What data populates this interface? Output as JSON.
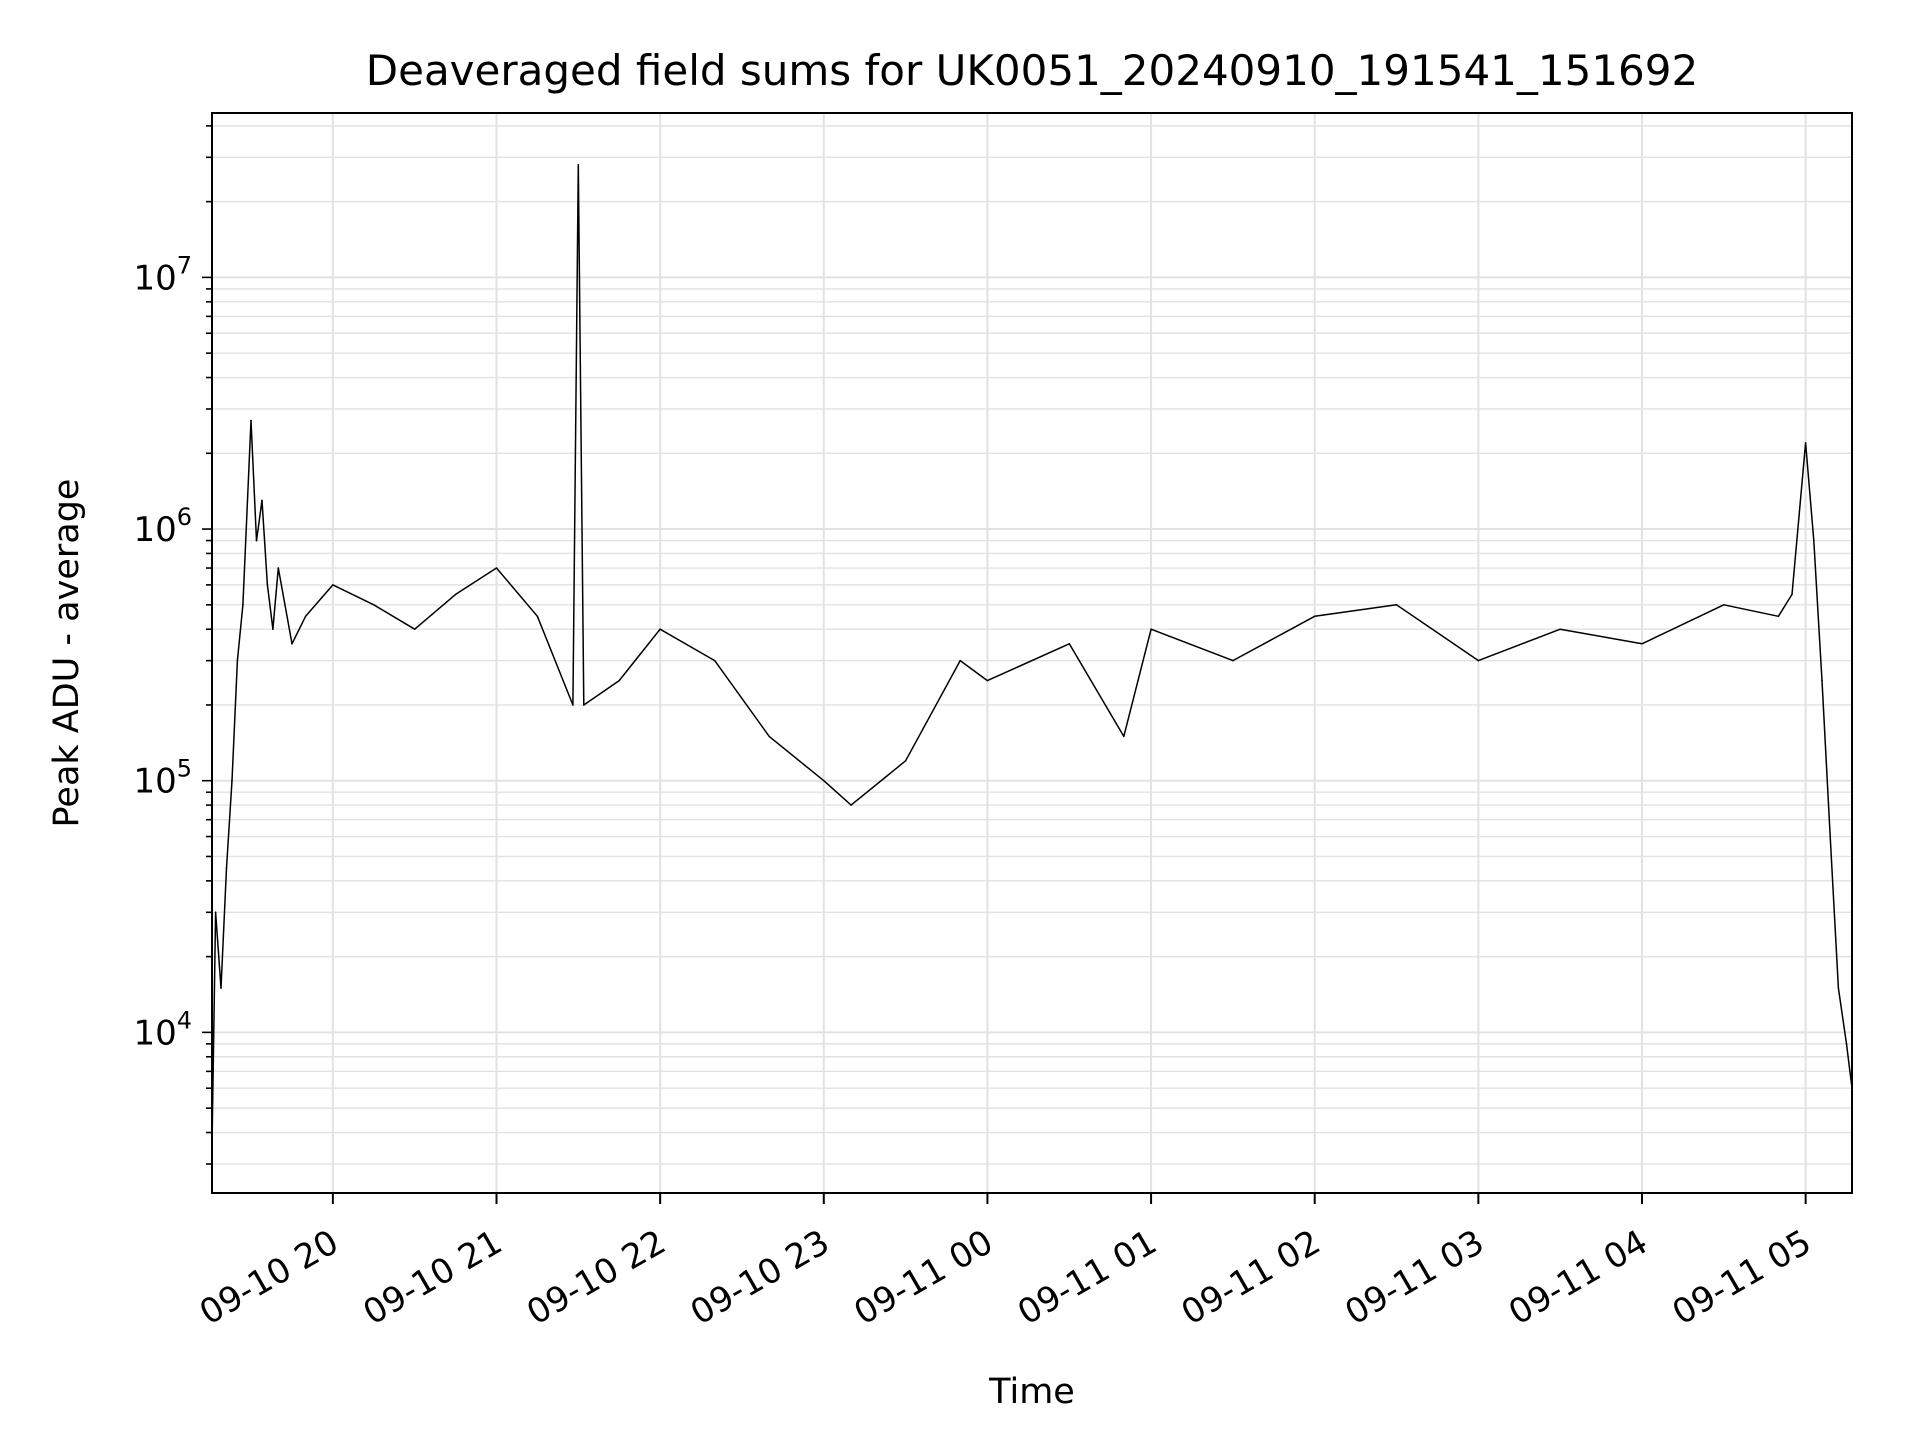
{
  "chart_data": {
    "type": "line",
    "title": "Deaveraged field sums for UK0051_20240910_191541_151692",
    "xlabel": "Time",
    "ylabel": "Peak ADU - average",
    "x_scale": "time",
    "y_scale": "log",
    "xlim": [
      "2024-09-10 19:15:41",
      "2024-09-11 05:17:00"
    ],
    "ylim": [
      2300,
      45000000
    ],
    "x_ticks": [
      "09-10 20",
      "09-10 21",
      "09-10 22",
      "09-10 23",
      "09-11 00",
      "09-11 01",
      "09-11 02",
      "09-11 03",
      "09-11 04",
      "09-11 05"
    ],
    "y_ticks": [
      {
        "value": 10000,
        "base": "10",
        "exp": "4"
      },
      {
        "value": 100000,
        "base": "10",
        "exp": "5"
      },
      {
        "value": 1000000,
        "base": "10",
        "exp": "6"
      },
      {
        "value": 10000000,
        "base": "10",
        "exp": "7"
      }
    ],
    "grid": true,
    "series_color": "#000000",
    "series": [
      {
        "x": [
          "2024-09-10 19:15:41",
          "2024-09-10 19:17",
          "2024-09-10 19:19",
          "2024-09-10 19:21",
          "2024-09-10 19:23",
          "2024-09-10 19:25",
          "2024-09-10 19:27",
          "2024-09-10 19:30",
          "2024-09-10 19:32",
          "2024-09-10 19:34",
          "2024-09-10 19:36",
          "2024-09-10 19:38",
          "2024-09-10 19:40",
          "2024-09-10 19:45",
          "2024-09-10 19:50",
          "2024-09-10 20:00",
          "2024-09-10 20:15",
          "2024-09-10 20:30",
          "2024-09-10 20:45",
          "2024-09-10 21:00",
          "2024-09-10 21:15",
          "2024-09-10 21:28",
          "2024-09-10 21:30",
          "2024-09-10 21:32",
          "2024-09-10 21:45",
          "2024-09-10 22:00",
          "2024-09-10 22:20",
          "2024-09-10 22:40",
          "2024-09-10 23:00",
          "2024-09-10 23:10",
          "2024-09-10 23:30",
          "2024-09-10 23:50",
          "2024-09-11 00:00",
          "2024-09-11 00:30",
          "2024-09-11 00:50",
          "2024-09-11 01:00",
          "2024-09-11 01:30",
          "2024-09-11 02:00",
          "2024-09-11 02:30",
          "2024-09-11 03:00",
          "2024-09-11 03:30",
          "2024-09-11 04:00",
          "2024-09-11 04:30",
          "2024-09-11 04:50",
          "2024-09-11 04:55",
          "2024-09-11 05:00",
          "2024-09-11 05:03",
          "2024-09-11 05:06",
          "2024-09-11 05:09",
          "2024-09-11 05:12",
          "2024-09-11 05:15",
          "2024-09-11 05:17"
        ],
        "y": [
          3500,
          30000,
          15000,
          45000,
          100000,
          300000,
          500000,
          2700000,
          900000,
          1300000,
          600000,
          400000,
          700000,
          350000,
          450000,
          600000,
          500000,
          400000,
          550000,
          700000,
          450000,
          200000,
          28000000,
          200000,
          250000,
          400000,
          300000,
          150000,
          100000,
          80000,
          120000,
          300000,
          250000,
          350000,
          150000,
          400000,
          300000,
          450000,
          500000,
          300000,
          400000,
          350000,
          500000,
          450000,
          550000,
          2200000,
          900000,
          250000,
          60000,
          15000,
          9000,
          6000
        ]
      }
    ]
  }
}
